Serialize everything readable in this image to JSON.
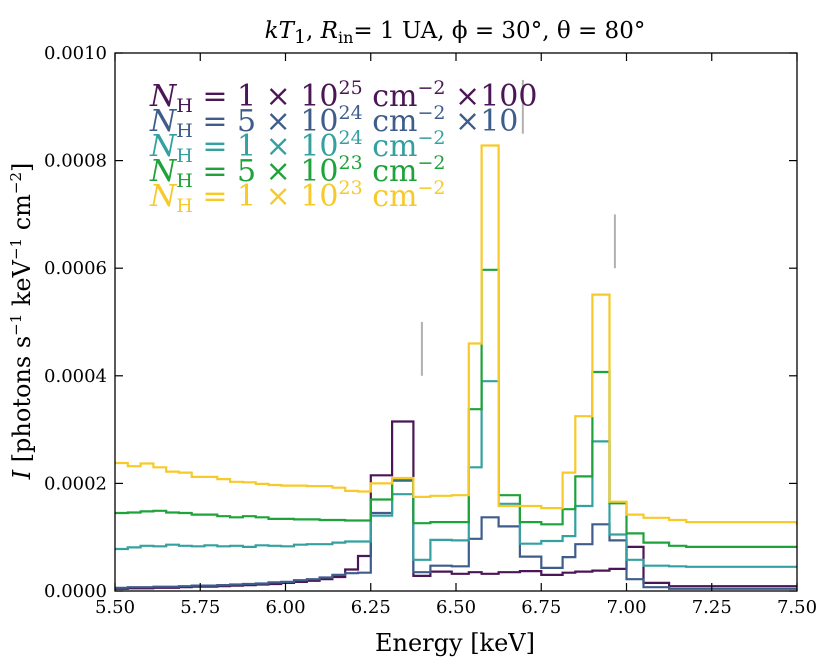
{
  "chart_data": {
    "type": "line",
    "title": "kT₁, Rᵢₙ= 1 UA, ϕ = 30°, θ = 80°",
    "title_parts": {
      "kT": "kT",
      "kT_sub": "1",
      "R": "R",
      "R_sub": "in",
      "rest": "= 1 UA, ϕ = 30°, θ = 80°"
    },
    "xlabel": "Energy [keV]",
    "ylabel": "I [photons s⁻¹ keV⁻¹ cm⁻²]",
    "ylabel_parts": {
      "I": "I",
      "main": " [photons s",
      "e1": "−1",
      "mid": " keV",
      "e2": "−1",
      "end": " cm",
      "e3": "−2",
      "close": "]"
    },
    "xlim": [
      5.5,
      7.5
    ],
    "ylim": [
      0.0,
      0.001
    ],
    "xticks": [
      "5.50",
      "5.75",
      "6.00",
      "6.25",
      "6.50",
      "6.75",
      "7.00",
      "7.25",
      "7.50"
    ],
    "xtick_values": [
      5.5,
      5.75,
      6.0,
      6.25,
      6.5,
      6.75,
      7.0,
      7.25,
      7.5
    ],
    "yticks": [
      "0.0000",
      "0.0002",
      "0.0004",
      "0.0006",
      "0.0008",
      "0.0010"
    ],
    "ytick_values": [
      0.0,
      0.0002,
      0.0004,
      0.0006,
      0.0008,
      0.001
    ],
    "grid": false,
    "legend_position": "top-left",
    "bin_edges": [
      5.5,
      5.5375,
      5.575,
      5.6125,
      5.65,
      5.6875,
      5.725,
      5.7625,
      5.8,
      5.8375,
      5.875,
      5.9125,
      5.95,
      5.9875,
      6.025,
      6.0625,
      6.1,
      6.1375,
      6.175,
      6.2125,
      6.25,
      6.3125,
      6.375,
      6.425,
      6.4875,
      6.5375,
      6.575,
      6.625,
      6.6875,
      6.75,
      6.8125,
      6.85,
      6.9,
      6.95,
      7.0,
      7.05,
      7.125,
      7.175,
      7.5
    ],
    "series": [
      {
        "name": "N_H = 1e25 cm^-2 x100",
        "legend": {
          "N": "N",
          "sub": "H",
          "eq": " = 1 × 10",
          "exp": "25",
          "unit": " cm",
          "uexp": "−2",
          "factor": "  ×100"
        },
        "color": "#4b1655",
        "values": [
          4e-06,
          5e-06,
          5e-06,
          6e-06,
          6e-06,
          7e-06,
          8e-06,
          8e-06,
          9e-06,
          1e-05,
          1.1e-05,
          1.2e-05,
          1.3e-05,
          1.5e-05,
          1.7e-05,
          1.9e-05,
          2.2e-05,
          2.6e-05,
          4e-05,
          6.5e-05,
          0.000215,
          0.000315,
          2.8e-05,
          3.6e-05,
          3.2e-05,
          3.5e-05,
          3.2e-05,
          3.5e-05,
          3.7e-05,
          3e-05,
          3.4e-05,
          3.6e-05,
          3.8e-05,
          4.1e-05,
          8.2e-05,
          1.5e-05,
          9e-06,
          9e-06,
          1e-05
        ]
      },
      {
        "name": "N_H = 5e24 cm^-2 x10",
        "legend": {
          "N": "N",
          "sub": "H",
          "eq": " = 5 × 10",
          "exp": "24",
          "unit": " cm",
          "uexp": "−2",
          "factor": "  ×10"
        },
        "color": "#3e5d8b",
        "values": [
          6e-06,
          7e-06,
          7e-06,
          8e-06,
          8e-06,
          9e-06,
          1e-05,
          1e-05,
          1.1e-05,
          1.2e-05,
          1.3e-05,
          1.4e-05,
          1.6e-05,
          1.7e-05,
          2e-05,
          2.2e-05,
          2.5e-05,
          3e-05,
          3.3e-05,
          3.4e-05,
          0.000145,
          0.000205,
          3.5e-05,
          4.7e-05,
          4.6e-05,
          9.7e-05,
          0.000137,
          0.00012,
          6.4e-05,
          4.3e-05,
          6.3e-05,
          8.7e-05,
          0.000124,
          9.4e-05,
          2.2e-05,
          7e-06,
          4e-06,
          4e-06,
          4e-06
        ]
      },
      {
        "name": "N_H = 1e24 cm^-2",
        "legend": {
          "N": "N",
          "sub": "H",
          "eq": " = 1 × 10",
          "exp": "24",
          "unit": " cm",
          "uexp": "−2",
          "factor": ""
        },
        "color": "#35a0a0",
        "values": [
          7.8e-05,
          8.1e-05,
          8.4e-05,
          8.3e-05,
          8.6e-05,
          8.4e-05,
          8.3e-05,
          8.5e-05,
          8.3e-05,
          8.4e-05,
          8.2e-05,
          8.5e-05,
          8.4e-05,
          8.3e-05,
          8.6e-05,
          8.7e-05,
          8.7e-05,
          9e-05,
          9.2e-05,
          9.2e-05,
          0.00014,
          0.00018,
          5.8e-05,
          9.5e-05,
          9.4e-05,
          0.00023,
          0.00039,
          0.000162,
          8.8e-05,
          9.3e-05,
          0.000102,
          0.000158,
          0.000278,
          0.000105,
          5.8e-05,
          4.7e-05,
          4.6e-05,
          4.5e-05,
          4.5e-05
        ]
      },
      {
        "name": "N_H = 5e23 cm^-2",
        "legend": {
          "N": "N",
          "sub": "H",
          "eq": " = 5 × 10",
          "exp": "23",
          "unit": " cm",
          "uexp": "−2",
          "factor": ""
        },
        "color": "#1ea23a",
        "values": [
          0.000145,
          0.000146,
          0.000148,
          0.000149,
          0.000146,
          0.000145,
          0.000142,
          0.000142,
          0.000139,
          0.000137,
          0.000139,
          0.000137,
          0.000134,
          0.000134,
          0.000133,
          0.000133,
          0.000132,
          0.000132,
          0.000131,
          0.000131,
          0.00017,
          0.000208,
          0.000126,
          0.000128,
          0.000128,
          0.000338,
          0.000597,
          0.000178,
          0.000128,
          0.000124,
          0.000152,
          0.000213,
          0.000407,
          0.000163,
          0.000107,
          9e-05,
          8.4e-05,
          8.2e-05,
          8e-05
        ]
      },
      {
        "name": "N_H = 1e23 cm^-2",
        "legend": {
          "N": "N",
          "sub": "H",
          "eq": " = 1 × 10",
          "exp": "23",
          "unit": " cm",
          "uexp": "−2",
          "factor": ""
        },
        "color": "#f7c929",
        "values": [
          0.000238,
          0.000232,
          0.000237,
          0.00023,
          0.000222,
          0.00022,
          0.000212,
          0.000212,
          0.000208,
          0.000203,
          0.000202,
          0.000199,
          0.000197,
          0.000196,
          0.000196,
          0.000195,
          0.000195,
          0.000192,
          0.000186,
          0.000185,
          0.0002,
          0.00021,
          0.000175,
          0.000177,
          0.000178,
          0.00046,
          0.000828,
          0.000158,
          0.000158,
          0.000154,
          0.00022,
          0.000325,
          0.000551,
          0.000166,
          0.000142,
          0.000136,
          0.000132,
          0.000128,
          0.000122
        ]
      }
    ],
    "markers": [
      {
        "x": 6.4,
        "y_range": [
          0.0004,
          0.0005
        ]
      },
      {
        "x": 6.696,
        "y_range": [
          0.00085,
          0.00095
        ]
      },
      {
        "x": 6.966,
        "y_range": [
          0.0006,
          0.0007
        ]
      }
    ],
    "marker_color": "#b0b0b0"
  }
}
